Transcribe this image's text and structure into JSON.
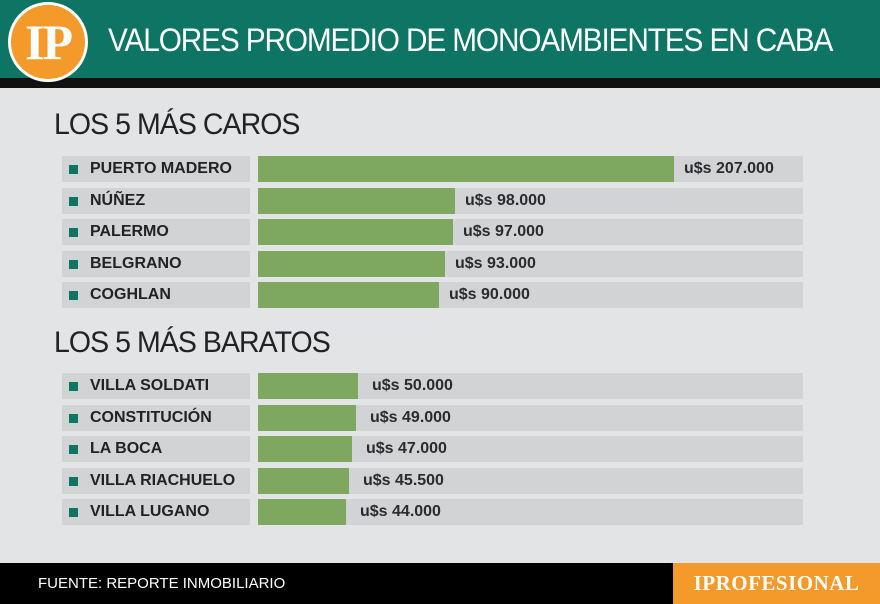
{
  "header": {
    "logo_text": "IP",
    "title": "VALORES PROMEDIO DE MONOAMBIENTES EN CABA"
  },
  "chart_data": [
    {
      "type": "bar",
      "orientation": "horizontal",
      "title": "LOS 5 MÁS CAROS",
      "categories": [
        "PUERTO MADERO",
        "NÚÑEZ",
        "PALERMO",
        "BELGRANO",
        "COGHLAN"
      ],
      "values": [
        207000,
        98000,
        97000,
        93000,
        90000
      ],
      "value_labels": [
        "u$s 207.000",
        "u$s 98.000",
        "u$s 97.000",
        "u$s 93.000",
        "u$s 90.000"
      ],
      "unit": "u$s",
      "xlim": [
        0,
        245000
      ]
    },
    {
      "type": "bar",
      "orientation": "horizontal",
      "title": "LOS 5 MÁS BARATOS",
      "categories": [
        "VILLA SOLDATI",
        "CONSTITUCIÓN",
        "LA BOCA",
        "VILLA RIACHUELO",
        "VILLA LUGANO"
      ],
      "values": [
        50000,
        49000,
        47000,
        45500,
        44000
      ],
      "value_labels": [
        "u$s 50.000",
        "u$s 49.000",
        "u$s 47.000",
        "u$s 45.500",
        "u$s 44.000"
      ],
      "unit": "u$s",
      "xlim": [
        0,
        245000
      ]
    }
  ],
  "footer": {
    "source": "FUENTE: REPORTE INMOBILIARIO",
    "brand": "IPROFESIONAL"
  },
  "colors": {
    "accent": "#0e7463",
    "bar": "#7ea85f",
    "orange": "#f39a2b",
    "track": "#d1d3d5",
    "background": "#e3e4e6"
  }
}
